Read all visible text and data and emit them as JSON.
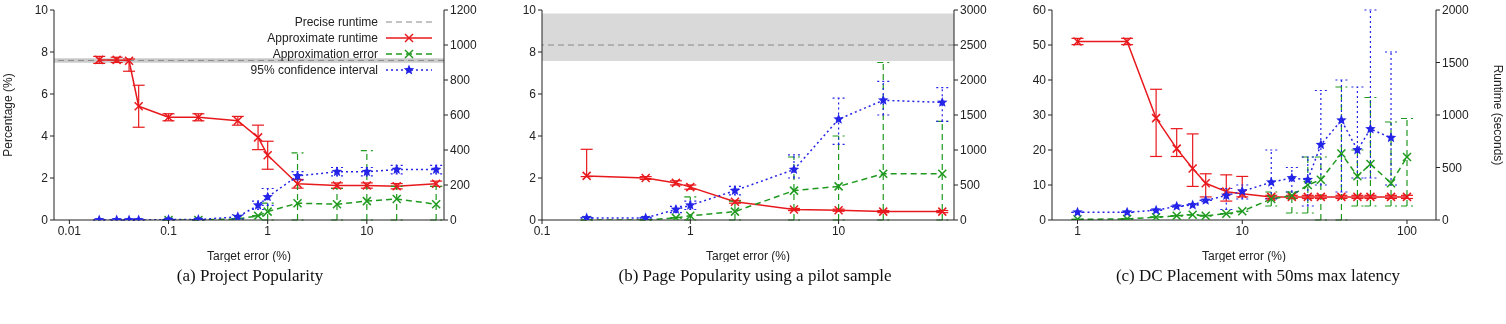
{
  "chart_data": [
    {
      "type": "line",
      "title": "(a) Project Popularity",
      "xlabel": "Target error (%)",
      "ylabel": "Percentage (%)",
      "log": "x",
      "xlim": [
        0.007,
        60
      ],
      "xticks": [
        0.01,
        0.1,
        1,
        10
      ],
      "ylim": [
        0,
        10
      ],
      "yticks": [
        0,
        2,
        4,
        6,
        8,
        10
      ],
      "y2lim": [
        0,
        1200
      ],
      "y2ticks": [
        0,
        200,
        400,
        600,
        800,
        1000,
        1200
      ],
      "legend": "top right",
      "grid": false,
      "x": [
        0.02,
        0.03,
        0.04,
        0.05,
        0.1,
        0.2,
        0.5,
        0.8,
        1,
        2,
        5,
        10,
        20,
        50
      ],
      "ref_lines": [
        {
          "axis": "y2",
          "value": 912,
          "label": "Precise runtime",
          "color": "#888888",
          "line_style": "dashed"
        }
      ],
      "bands": [
        {
          "axis": "y2",
          "from": 898,
          "to": 925,
          "color": "#cccccc"
        }
      ],
      "series": [
        {
          "name": "Approximate runtime",
          "color": "#e8191d",
          "axis": "y2",
          "marker": "cross",
          "line_style": "solid",
          "values": [
            915,
            915,
            910,
            650,
            587,
            587,
            567,
            472,
            370,
            207,
            197,
            197,
            193,
            207
          ],
          "errors": [
            20,
            15,
            [
              850,
              920
            ],
            120,
            20,
            20,
            25,
            70,
            80,
            25,
            15,
            15,
            15,
            15
          ]
        },
        {
          "name": "Approximation error",
          "color": "#1f9a1f",
          "marker": "cross",
          "line_style": "dashed",
          "values": [
            null,
            null,
            null,
            null,
            0,
            0,
            0.05,
            0.2,
            0.4,
            0.8,
            0.75,
            0.9,
            1.0,
            0.75
          ],
          "errors": [
            null,
            null,
            null,
            null,
            null,
            null,
            null,
            null,
            0.4,
            [
              0,
              3.2
            ],
            [
              0,
              1.5
            ],
            [
              0,
              3.3
            ],
            [
              0,
              1.6
            ],
            [
              0,
              1.6
            ]
          ]
        },
        {
          "name": "95% confidence interval",
          "color": "#2424e8",
          "marker": "star",
          "line_style": "dotted",
          "values": [
            0,
            0,
            0,
            0,
            0.02,
            0.02,
            0.15,
            0.7,
            1.1,
            2.1,
            2.3,
            2.3,
            2.4,
            2.4
          ],
          "errors": [
            null,
            null,
            null,
            null,
            null,
            null,
            0.1,
            0.2,
            0.4,
            0.2,
            0.2,
            0.2,
            0.2,
            0.2
          ]
        }
      ]
    },
    {
      "type": "line",
      "title": "(b) Page Popularity using a pilot sample",
      "xlabel": "Target error (%)",
      "log": "x",
      "xlim": [
        0.1,
        60
      ],
      "xticks": [
        0.1,
        1,
        10
      ],
      "ylim": [
        0,
        10
      ],
      "yticks": [
        0,
        2,
        4,
        6,
        8,
        10
      ],
      "y2lim": [
        0,
        3000
      ],
      "y2ticks": [
        0,
        500,
        1000,
        1500,
        2000,
        2500,
        3000
      ],
      "grid": false,
      "x": [
        0.2,
        0.5,
        0.8,
        1,
        2,
        5,
        10,
        20,
        50
      ],
      "ref_lines": [
        {
          "axis": "y2",
          "value": 2500,
          "color": "#888888",
          "line_style": "dashed"
        }
      ],
      "bands": [
        {
          "axis": "y2",
          "from": 2270,
          "to": 2950,
          "color": "#d9d9d9"
        }
      ],
      "series": [
        {
          "color": "#e8191d",
          "axis": "y2",
          "marker": "cross",
          "line_style": "solid",
          "values": [
            630,
            600,
            530,
            470,
            260,
            150,
            140,
            120,
            120
          ],
          "errors": [
            [
              620,
              1010
            ],
            20,
            30,
            30,
            20,
            15,
            15,
            15,
            15
          ]
        },
        {
          "color": "#1f9a1f",
          "marker": "cross",
          "line_style": "dashed",
          "values": [
            0,
            0,
            0.1,
            0.2,
            0.4,
            1.4,
            1.6,
            2.2,
            2.2
          ],
          "errors": [
            null,
            null,
            null,
            [
              0,
              1.1
            ],
            [
              0,
              0.9
            ],
            [
              0,
              3.0
            ],
            [
              0,
              4.0
            ],
            [
              0,
              7.5
            ],
            [
              0,
              4.7
            ]
          ]
        },
        {
          "color": "#2424e8",
          "marker": "star",
          "line_style": "dotted",
          "values": [
            0.1,
            0.1,
            0.5,
            0.7,
            1.4,
            2.4,
            4.8,
            5.7,
            5.6
          ],
          "errors": [
            null,
            null,
            0.15,
            0.2,
            0.2,
            [
              2.0,
              3.1
            ],
            [
              3.6,
              5.8
            ],
            [
              5.0,
              6.6
            ],
            [
              4.7,
              6.3
            ]
          ]
        }
      ]
    },
    {
      "type": "line",
      "title": "(c) DC Placement with 50ms max latency",
      "xlabel": "Target error (%)",
      "y2label": "Runtime (seconds)",
      "log": "x",
      "xlim": [
        0.7,
        150
      ],
      "xticks": [
        1,
        10,
        100
      ],
      "ylim": [
        0,
        60
      ],
      "yticks": [
        0,
        10,
        20,
        30,
        40,
        50,
        60
      ],
      "y2lim": [
        0,
        2000
      ],
      "y2ticks": [
        0,
        500,
        1000,
        1500,
        2000
      ],
      "grid": false,
      "x": [
        1,
        2,
        3,
        4,
        5,
        6,
        8,
        10,
        15,
        20,
        25,
        30,
        40,
        50,
        60,
        80,
        100
      ],
      "series": [
        {
          "color": "#e8191d",
          "axis": "y2",
          "marker": "cross",
          "line_style": "solid",
          "values": [
            1700,
            1700,
            970,
            680,
            490,
            350,
            270,
            250,
            220,
            220,
            220,
            220,
            220,
            220,
            220,
            220,
            220
          ],
          "errors": [
            30,
            30,
            [
              605,
              1245
            ],
            [
              605,
              870
            ],
            [
              320,
              820
            ],
            [
              220,
              440
            ],
            [
              180,
              430
            ],
            [
              220,
              415
            ],
            15,
            15,
            15,
            15,
            15,
            15,
            15,
            15,
            15
          ]
        },
        {
          "color": "#1f9a1f",
          "marker": "cross",
          "line_style": "dashed",
          "values": [
            0.2,
            0.3,
            0.8,
            1.2,
            1.5,
            1.2,
            1.8,
            2.5,
            6,
            7,
            10,
            11.5,
            19,
            12.5,
            16,
            10.5,
            18
          ],
          "errors": [
            null,
            null,
            null,
            null,
            null,
            null,
            null,
            null,
            [
              4,
              8
            ],
            [
              2,
              8
            ],
            [
              2,
              18
            ],
            [
              0,
              18
            ],
            [
              0,
              38
            ],
            [
              4,
              20
            ],
            [
              4,
              35
            ],
            [
              4,
              28
            ],
            [
              4,
              29
            ]
          ]
        },
        {
          "color": "#2424e8",
          "marker": "star",
          "line_style": "dotted",
          "values": [
            2.2,
            2.2,
            2.8,
            3.9,
            4.3,
            5.6,
            7,
            8.2,
            10.8,
            12,
            11.5,
            21.5,
            28.5,
            20,
            26,
            23.5,
            null
          ],
          "errors": [
            null,
            null,
            null,
            null,
            null,
            null,
            [
              3,
              9
            ],
            [
              6,
              10
            ],
            [
              6,
              20
            ],
            [
              8,
              15
            ],
            [
              4,
              18
            ],
            [
              10,
              37
            ],
            [
              8,
              40
            ],
            [
              12,
              38
            ],
            [
              12,
              60
            ],
            [
              10,
              48
            ],
            null
          ]
        }
      ]
    }
  ]
}
